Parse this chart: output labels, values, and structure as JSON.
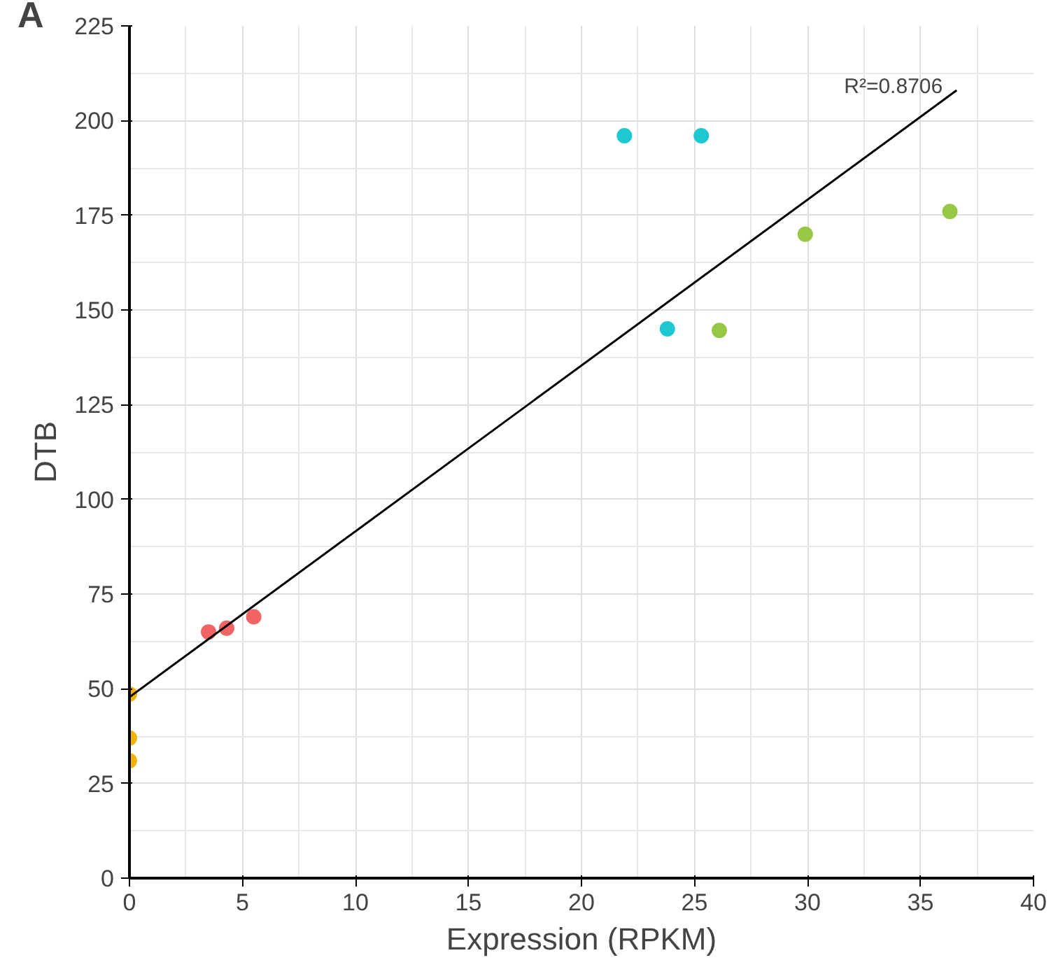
{
  "chart_data": {
    "type": "scatter",
    "xlabel": "Expression (RPKM)",
    "ylabel": "DTB",
    "xlim": [
      0,
      40
    ],
    "ylim": [
      0,
      225
    ],
    "xticks": [
      0,
      5,
      10,
      15,
      20,
      25,
      30,
      35,
      40
    ],
    "yticks": [
      0,
      25,
      50,
      75,
      100,
      125,
      150,
      175,
      200,
      225
    ],
    "grid": true,
    "series": [
      {
        "color": "#f0b400",
        "marker": "circle",
        "x": [
          0,
          0,
          0
        ],
        "values": [
          48.6,
          37,
          31
        ]
      },
      {
        "color": "#f06464",
        "marker": "circle",
        "x": [
          3.5,
          4.3,
          5.5
        ],
        "values": [
          65,
          66,
          69
        ]
      },
      {
        "color": "#1ec8d2",
        "marker": "circle",
        "x": [
          21.9,
          25.3,
          23.8
        ],
        "values": [
          196,
          196,
          145
        ]
      },
      {
        "color": "#96c846",
        "marker": "circle",
        "x": [
          26.1,
          29.9,
          36.3
        ],
        "values": [
          144.6,
          170,
          176
        ]
      },
      {
        "type": "line",
        "color": "#000000",
        "x": [
          0,
          36.6
        ],
        "values": [
          47.8,
          208
        ]
      }
    ],
    "annotations": [
      "A",
      {
        "text": "R²=0.8706",
        "x": 36.6,
        "y": 208
      }
    ]
  }
}
